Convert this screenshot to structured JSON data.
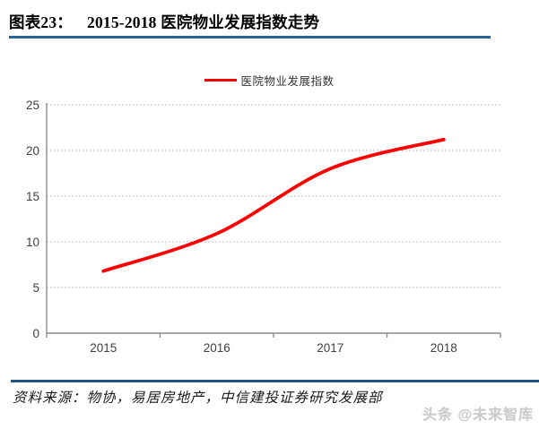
{
  "header": {
    "figure_label": "图表23：",
    "figure_title": "2015-2018 医院物业发展指数走势"
  },
  "chart_data": {
    "type": "line",
    "title": "图表23： 2015-2018 医院物业发展指数走势",
    "categories": [
      "2015",
      "2016",
      "2017",
      "2018"
    ],
    "series": [
      {
        "name": "医院物业发展指数",
        "color": "#fe0000",
        "values": [
          6.8,
          10.9,
          18.0,
          21.2
        ]
      }
    ],
    "xlabel": "",
    "ylabel": "",
    "ylim": [
      0,
      25
    ],
    "yticks": [
      0,
      5,
      10,
      15,
      20,
      25
    ],
    "grid": "horizontal-dotted",
    "legend_position": "top-center",
    "line_style": "smooth"
  },
  "footer": {
    "source_text": "资料来源：物协，易居房地产，中信建投证券研究发展部",
    "watermark": "头条 @未来智库"
  },
  "colors": {
    "header_rule": "#2a6598",
    "footer_rule": "#24557f",
    "series_line": "#fe0000",
    "axis": "#8c8c8c",
    "grid": "#bdbdbd",
    "tick_label": "#404040",
    "watermark": "#cccccc"
  }
}
